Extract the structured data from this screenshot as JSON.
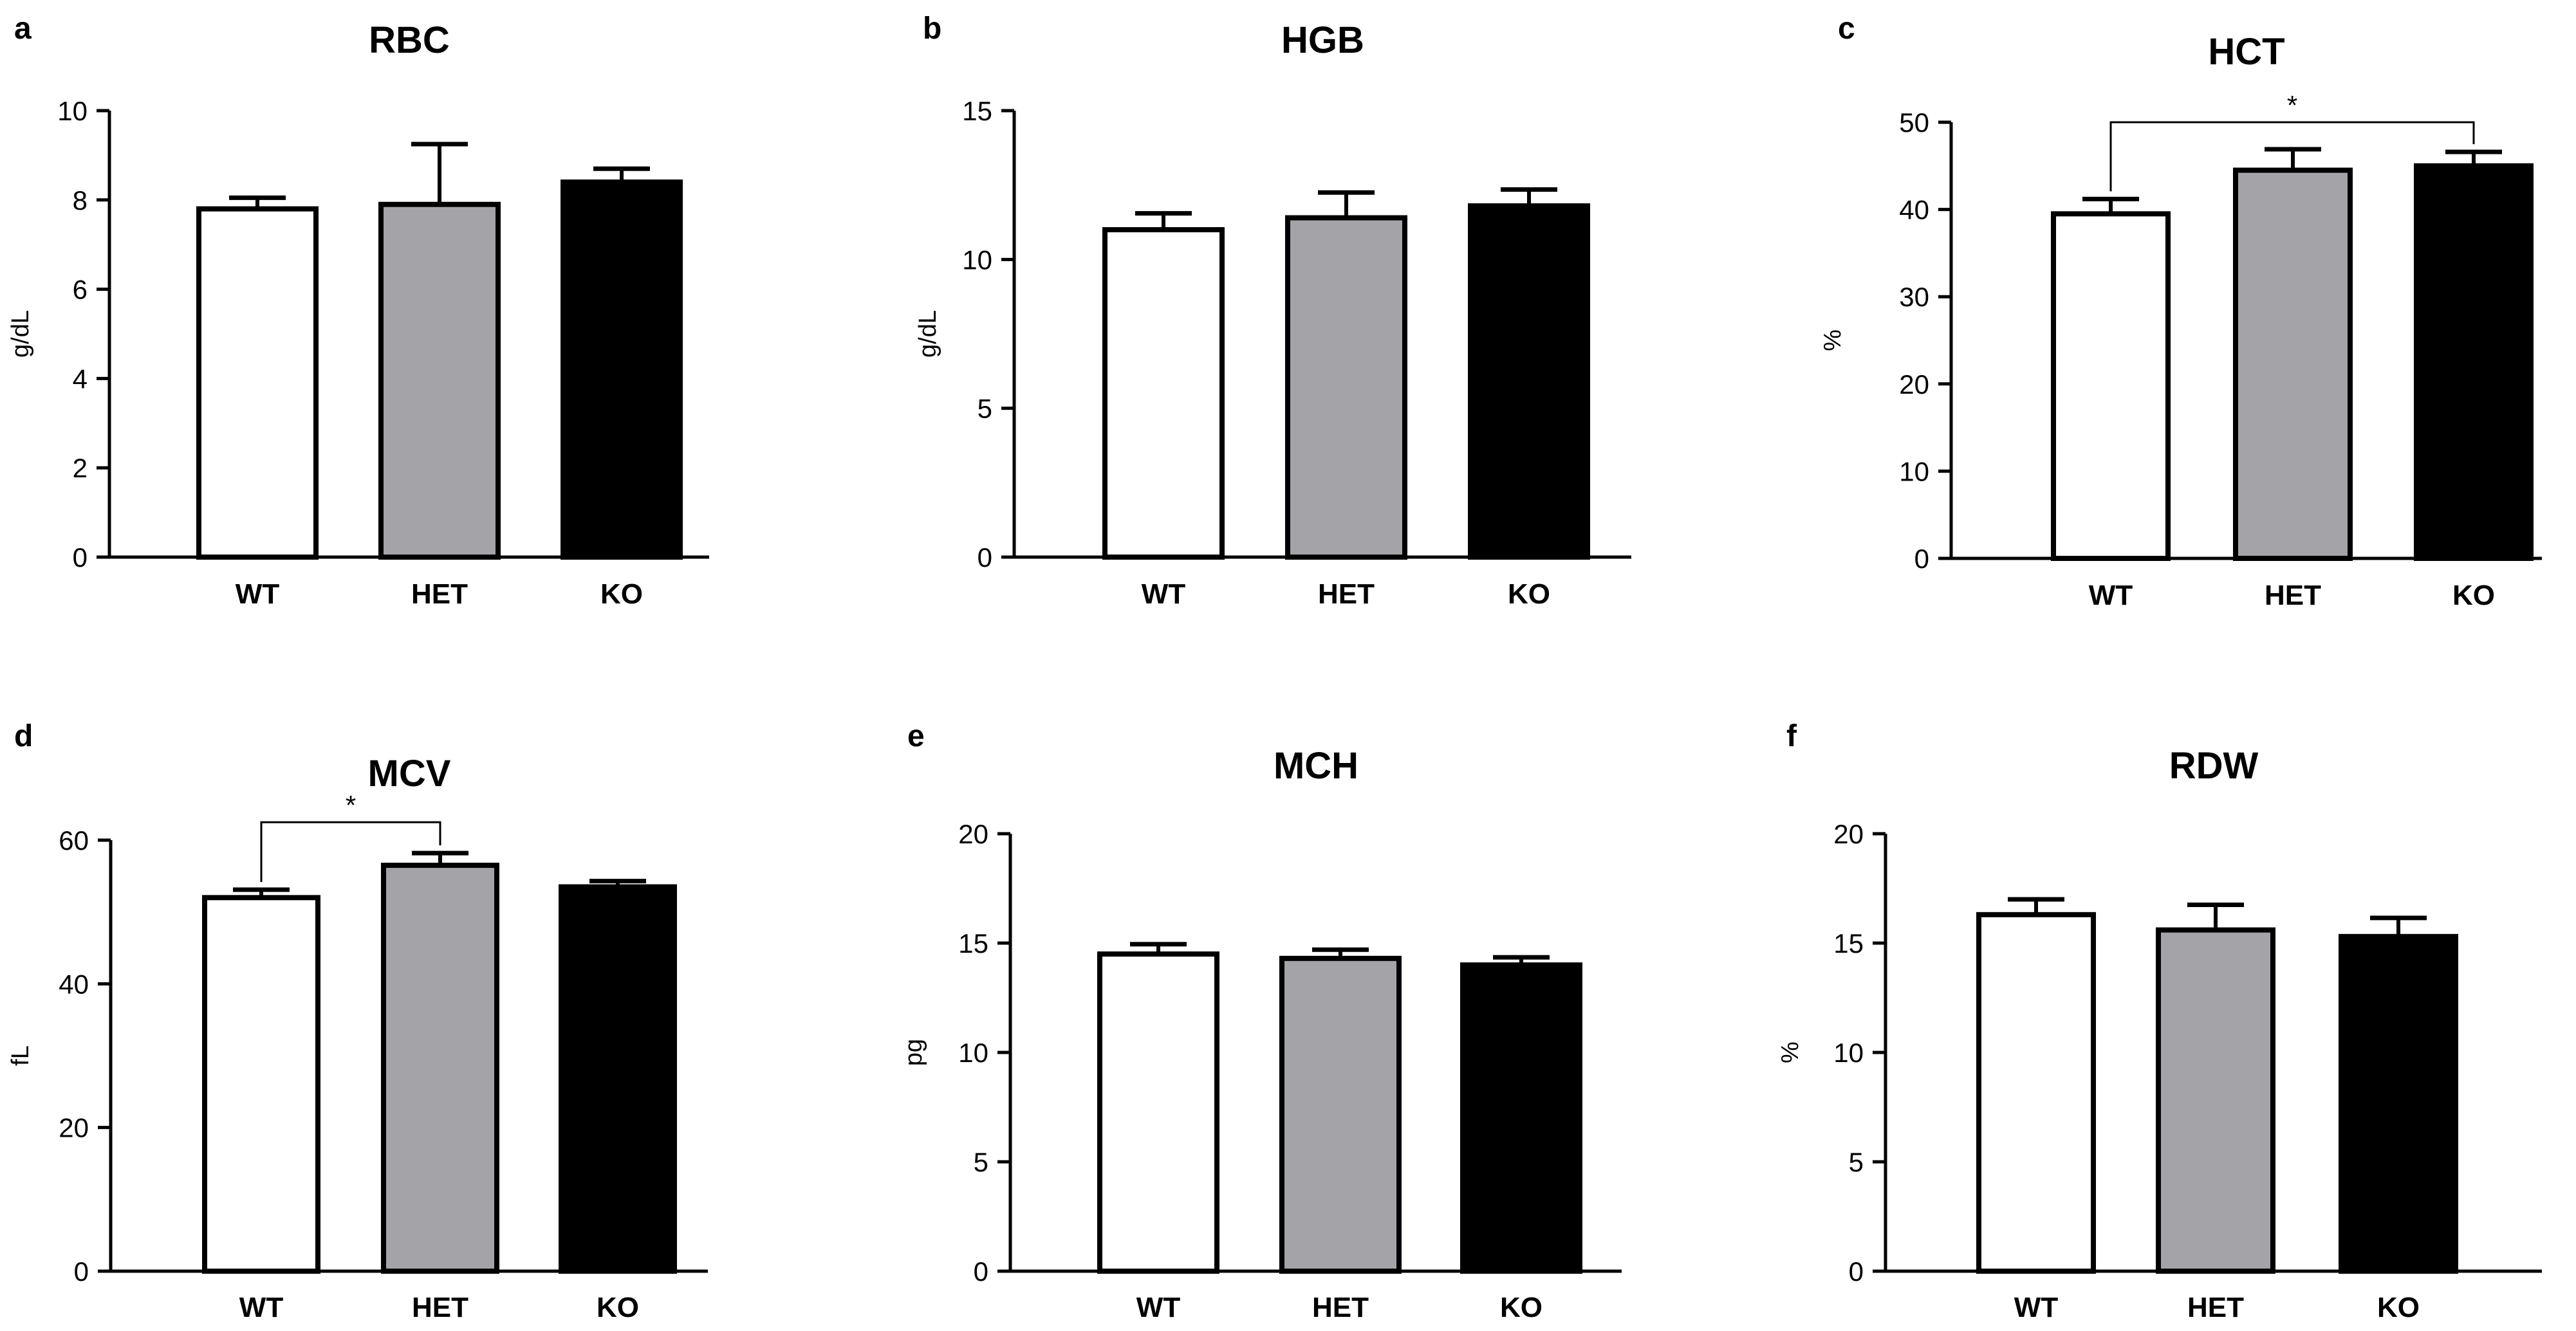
{
  "chart_data": [
    {
      "id": "a",
      "letter": "a",
      "type": "bar",
      "title": "RBC",
      "ylabel": "g/dL",
      "categories": [
        "WT",
        "HET",
        "KO"
      ],
      "values": [
        7.8,
        7.9,
        8.4
      ],
      "errors": [
        0.25,
        1.35,
        0.3
      ],
      "ylim": [
        0,
        10
      ],
      "yticks": [
        0,
        2,
        4,
        6,
        8,
        10
      ],
      "colors": [
        "#ffffff",
        "#a3a3a8",
        "#000000"
      ],
      "significance": []
    },
    {
      "id": "b",
      "letter": "b",
      "type": "bar",
      "title": "HGB",
      "ylabel": "g/dL",
      "categories": [
        "WT",
        "HET",
        "KO"
      ],
      "values": [
        11.0,
        11.4,
        11.8
      ],
      "errors": [
        0.55,
        0.85,
        0.55
      ],
      "ylim": [
        0,
        15
      ],
      "yticks": [
        0,
        5,
        10,
        15
      ],
      "colors": [
        "#ffffff",
        "#a3a3a8",
        "#000000"
      ],
      "significance": []
    },
    {
      "id": "c",
      "letter": "c",
      "type": "bar",
      "title": "HCT",
      "ylabel": "%",
      "categories": [
        "WT",
        "HET",
        "KO"
      ],
      "values": [
        39.5,
        44.5,
        45.0
      ],
      "errors": [
        1.7,
        2.4,
        1.6
      ],
      "ylim": [
        0,
        50
      ],
      "yticks": [
        0,
        10,
        20,
        30,
        40,
        50
      ],
      "colors": [
        "#ffffff",
        "#a3a3a8",
        "#000000"
      ],
      "significance": [
        {
          "from": 0,
          "to": 2,
          "level": 50,
          "label": "*"
        }
      ]
    },
    {
      "id": "d",
      "letter": "d",
      "type": "bar",
      "title": "MCV",
      "ylabel": "fL",
      "categories": [
        "WT",
        "HET",
        "KO"
      ],
      "values": [
        52.0,
        56.5,
        53.5
      ],
      "errors": [
        1.1,
        1.7,
        0.8
      ],
      "ylim": [
        0,
        60
      ],
      "yticks": [
        0,
        20,
        40,
        60
      ],
      "colors": [
        "#ffffff",
        "#a3a3a8",
        "#000000"
      ],
      "significance": [
        {
          "from": 0,
          "to": 1,
          "level": 62.5,
          "label": "*"
        }
      ]
    },
    {
      "id": "e",
      "letter": "e",
      "type": "bar",
      "title": "MCH",
      "ylabel": "pg",
      "categories": [
        "WT",
        "HET",
        "KO"
      ],
      "values": [
        14.5,
        14.3,
        14.0
      ],
      "errors": [
        0.45,
        0.4,
        0.35
      ],
      "ylim": [
        0,
        20
      ],
      "yticks": [
        0,
        5,
        10,
        15,
        20
      ],
      "colors": [
        "#ffffff",
        "#a3a3a8",
        "#000000"
      ],
      "significance": []
    },
    {
      "id": "f",
      "letter": "f",
      "type": "bar",
      "title": "RDW",
      "ylabel": "%",
      "categories": [
        "WT",
        "HET",
        "KO"
      ],
      "values": [
        16.3,
        15.6,
        15.3
      ],
      "errors": [
        0.7,
        1.15,
        0.85
      ],
      "ylim": [
        0,
        20
      ],
      "yticks": [
        0,
        5,
        10,
        15,
        20
      ],
      "colors": [
        "#ffffff",
        "#a3a3a8",
        "#000000"
      ],
      "significance": []
    }
  ]
}
